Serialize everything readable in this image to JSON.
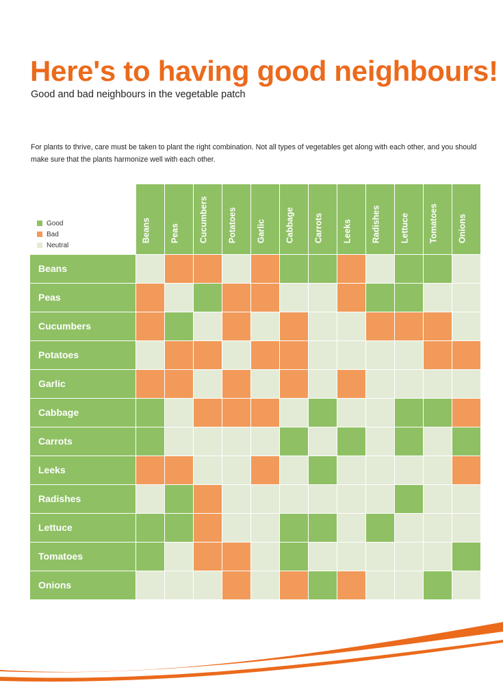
{
  "title": "Here's to having good neighbours!",
  "subtitle": "Good and bad neighbours in the vegetable patch",
  "intro": "For plants to thrive, care must be taken to plant the right combination. Not all types of vegetables get along with each other, and you should make sure that the plants harmonize well with each other.",
  "legend": [
    {
      "label": "Good",
      "key": "G"
    },
    {
      "label": "Bad",
      "key": "B"
    },
    {
      "label": "Neutral",
      "key": "N"
    }
  ],
  "colors": {
    "good": "#8fc064",
    "bad": "#f19a5a",
    "neutral": "#e3ebd6",
    "header": "#8fc064",
    "accent": "#eb6a1c"
  },
  "chart_data": {
    "type": "heatmap",
    "title": "Here's to having good neighbours!",
    "columns": [
      "Beans",
      "Peas",
      "Cucumbers",
      "Potatoes",
      "Garlic",
      "Cabbage",
      "Carrots",
      "Leeks",
      "Radishes",
      "Lettuce",
      "Tomatoes",
      "Onions"
    ],
    "rows": [
      "Beans",
      "Peas",
      "Cucumbers",
      "Potatoes",
      "Garlic",
      "Cabbage",
      "Carrots",
      "Leeks",
      "Radishes",
      "Lettuce",
      "Tomatoes",
      "Onions"
    ],
    "value_legend": {
      "G": "Good",
      "B": "Bad",
      "N": "Neutral"
    },
    "values": [
      [
        "N",
        "B",
        "B",
        "N",
        "B",
        "G",
        "G",
        "B",
        "N",
        "G",
        "G",
        "N"
      ],
      [
        "B",
        "N",
        "G",
        "B",
        "B",
        "N",
        "N",
        "B",
        "G",
        "G",
        "N",
        "N"
      ],
      [
        "B",
        "G",
        "N",
        "B",
        "N",
        "B",
        "N",
        "N",
        "B",
        "B",
        "B",
        "N"
      ],
      [
        "N",
        "B",
        "B",
        "N",
        "B",
        "B",
        "N",
        "N",
        "N",
        "N",
        "B",
        "B"
      ],
      [
        "B",
        "B",
        "N",
        "B",
        "N",
        "B",
        "N",
        "B",
        "N",
        "N",
        "N",
        "N"
      ],
      [
        "G",
        "N",
        "B",
        "B",
        "B",
        "N",
        "G",
        "N",
        "N",
        "G",
        "G",
        "B"
      ],
      [
        "G",
        "N",
        "N",
        "N",
        "N",
        "G",
        "N",
        "G",
        "N",
        "G",
        "N",
        "G"
      ],
      [
        "B",
        "B",
        "N",
        "N",
        "B",
        "N",
        "G",
        "N",
        "N",
        "N",
        "N",
        "B"
      ],
      [
        "N",
        "G",
        "B",
        "N",
        "N",
        "N",
        "N",
        "N",
        "N",
        "G",
        "N",
        "N"
      ],
      [
        "G",
        "G",
        "B",
        "N",
        "N",
        "G",
        "G",
        "N",
        "G",
        "N",
        "N",
        "N"
      ],
      [
        "G",
        "N",
        "B",
        "B",
        "N",
        "G",
        "N",
        "N",
        "N",
        "N",
        "N",
        "G"
      ],
      [
        "N",
        "N",
        "N",
        "B",
        "N",
        "B",
        "G",
        "B",
        "N",
        "N",
        "G",
        "N"
      ]
    ]
  }
}
